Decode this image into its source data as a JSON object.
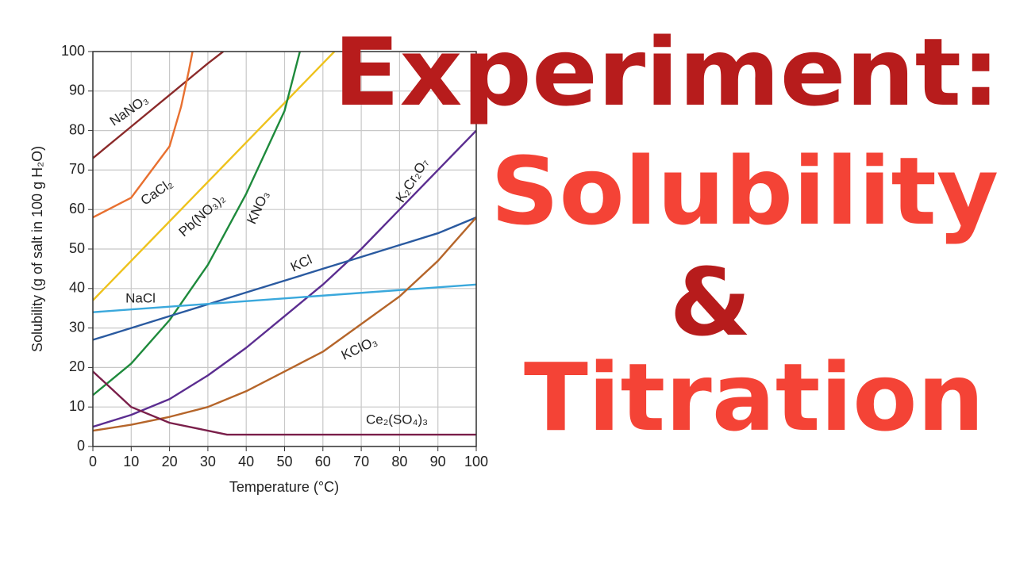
{
  "headline": {
    "lines": [
      "Experiment:",
      "Solubility",
      "&",
      "Titration"
    ]
  },
  "chart_data": {
    "type": "line",
    "xlabel": "Temperature (°C)",
    "ylabel": "Solubility (g of salt in 100 g H₂O)",
    "xlim": [
      0,
      100
    ],
    "ylim": [
      0,
      100
    ],
    "xticks": [
      0,
      10,
      20,
      30,
      40,
      50,
      60,
      70,
      80,
      90,
      100
    ],
    "yticks": [
      0,
      10,
      20,
      30,
      40,
      50,
      60,
      70,
      80,
      90,
      100
    ],
    "grid": true,
    "series": [
      {
        "name": "NaNO₃",
        "color": "#8b2a2a",
        "x": [
          0,
          10,
          20,
          30,
          34
        ],
        "values": [
          73,
          81,
          89,
          97,
          100
        ]
      },
      {
        "name": "CaCl₂",
        "color": "#e87030",
        "x": [
          0,
          10,
          20,
          23,
          25,
          26
        ],
        "values": [
          58,
          63,
          76,
          86,
          95,
          100
        ]
      },
      {
        "name": "Pb(NO₃)₂",
        "color": "#eec21c",
        "x": [
          0,
          20,
          40,
          60,
          63
        ],
        "values": [
          37,
          57,
          77,
          97,
          100
        ]
      },
      {
        "name": "KNO₃",
        "color": "#1e8a3c",
        "x": [
          0,
          10,
          20,
          30,
          40,
          50,
          54
        ],
        "values": [
          13,
          21,
          32,
          46,
          64,
          85,
          100
        ]
      },
      {
        "name": "K₂Cr₂O₇",
        "color": "#5b2d90",
        "x": [
          0,
          10,
          20,
          30,
          40,
          50,
          60,
          70,
          80,
          90,
          100
        ],
        "values": [
          5,
          8,
          12,
          18,
          25,
          33,
          41,
          50,
          60,
          70,
          80
        ]
      },
      {
        "name": "KCl",
        "color": "#2a5aa0",
        "x": [
          0,
          10,
          20,
          30,
          40,
          50,
          60,
          70,
          80,
          90,
          100
        ],
        "values": [
          27,
          30,
          33,
          36,
          39,
          42,
          45,
          48,
          51,
          54,
          58
        ]
      },
      {
        "name": "NaCl",
        "color": "#3aa8dc",
        "x": [
          0,
          100
        ],
        "values": [
          34,
          41
        ]
      },
      {
        "name": "KClO₃",
        "color": "#b5652a",
        "x": [
          0,
          10,
          20,
          30,
          40,
          50,
          60,
          70,
          80,
          90,
          100
        ],
        "values": [
          4,
          5.5,
          7.5,
          10,
          14,
          19,
          24,
          31,
          38,
          47,
          58
        ]
      },
      {
        "name": "Ce₂(SO₄)₃",
        "color": "#7a1f4a",
        "x": [
          0,
          10,
          20,
          30,
          35,
          100
        ],
        "values": [
          19,
          10,
          6,
          4,
          3,
          3
        ]
      }
    ]
  }
}
